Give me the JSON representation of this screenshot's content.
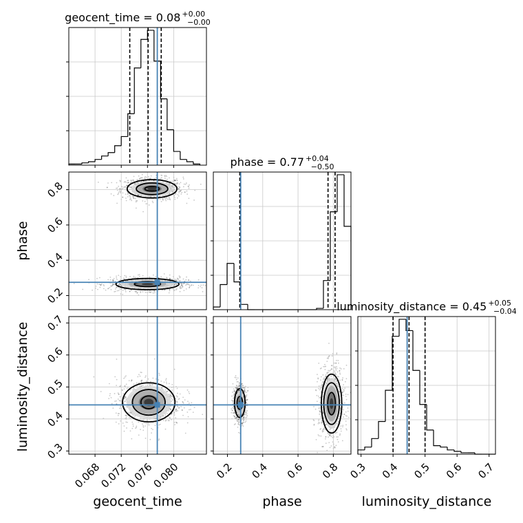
{
  "chart_data": {
    "type": "corner",
    "parameters": [
      "geocent_time",
      "phase",
      "luminosity_distance"
    ],
    "axis_labels": {
      "geocent_time": "geocent_time",
      "phase": "phase",
      "luminosity_distance": "luminosity_distance"
    },
    "titles": {
      "geocent_time": {
        "name": "geocent_time",
        "value": "0.08",
        "plus": "+0.00",
        "minus": "−0.00"
      },
      "phase": {
        "name": "phase",
        "value": "0.77",
        "plus": "+0.04",
        "minus": "−0.50"
      },
      "luminosity_distance": {
        "name": "luminosity_distance",
        "value": "0.45",
        "plus": "+0.05",
        "minus": "−0.04"
      }
    },
    "ranges": {
      "geocent_time": [
        0.064,
        0.085
      ],
      "phase": [
        0.12,
        0.9
      ],
      "luminosity_distance": [
        0.29,
        0.72
      ]
    },
    "ticks": {
      "geocent_time": [
        0.068,
        0.072,
        0.076,
        0.08
      ],
      "phase": [
        0.2,
        0.4,
        0.6,
        0.8
      ],
      "luminosity_distance": [
        0.3,
        0.4,
        0.5,
        0.6,
        0.7
      ]
    },
    "tick_labels": {
      "geocent_time": [
        "0.068",
        "0.072",
        "0.076",
        "0.080"
      ],
      "phase": [
        "0.2",
        "0.4",
        "0.6",
        "0.8"
      ],
      "luminosity_distance": [
        "0.3",
        "0.4",
        "0.5",
        "0.6",
        "0.7"
      ]
    },
    "truths": {
      "geocent_time": 0.0775,
      "phase": 0.275,
      "luminosity_distance": 0.444
    },
    "quantiles": {
      "geocent_time": [
        0.0733,
        0.0761,
        0.0781
      ],
      "phase": [
        0.27,
        0.77,
        0.81
      ],
      "luminosity_distance": [
        0.4,
        0.45,
        0.5
      ]
    },
    "histograms": {
      "geocent_time": {
        "bin_start": 0.064,
        "bin_width": 0.001,
        "counts": [
          1,
          1,
          2,
          3,
          5,
          8,
          11,
          17,
          25,
          45,
          85,
          110,
          118,
          91,
          58,
          31,
          12,
          5,
          3,
          1
        ]
      },
      "phase": {
        "bin_start": 0.12,
        "bin_width": 0.039,
        "counts": [
          2,
          19,
          35,
          21,
          4,
          0,
          0,
          0,
          0,
          0,
          0,
          0,
          0,
          0,
          0,
          1,
          22,
          74,
          102,
          63
        ]
      },
      "luminosity_distance": {
        "bin_start": 0.29,
        "bin_width": 0.0215,
        "counts": [
          3,
          5,
          11,
          23,
          45,
          83,
          95,
          87,
          59,
          35,
          17,
          6,
          5,
          3,
          2,
          1,
          1,
          0,
          0,
          0
        ]
      }
    },
    "contours_2d": [
      {
        "x": "geocent_time",
        "y": "phase",
        "modes": [
          {
            "cx": 0.0767,
            "cy": 0.805,
            "levels": [
              [
                0.0011,
                0.013
              ],
              [
                0.0024,
                0.033
              ],
              [
                0.0038,
                0.052
              ]
            ]
          },
          {
            "cx": 0.076,
            "cy": 0.265,
            "levels": [
              [
                0.002,
                0.014
              ],
              [
                0.0048,
                0.032
              ]
            ]
          }
        ]
      },
      {
        "x": "geocent_time",
        "y": "luminosity_distance",
        "modes": [
          {
            "cx": 0.0762,
            "cy": 0.452,
            "levels": [
              [
                0.0012,
                0.02
              ],
              [
                0.0025,
                0.04
              ],
              [
                0.004,
                0.061
              ]
            ]
          }
        ]
      },
      {
        "x": "phase",
        "y": "luminosity_distance",
        "modes": [
          {
            "cx": 0.79,
            "cy": 0.448,
            "levels": [
              [
                0.022,
                0.035
              ],
              [
                0.044,
                0.065
              ],
              [
                0.058,
                0.092
              ]
            ]
          },
          {
            "cx": 0.27,
            "cy": 0.45,
            "levels": [
              [
                0.016,
                0.02
              ],
              [
                0.03,
                0.045
              ]
            ]
          }
        ]
      }
    ],
    "grid": true,
    "truth_color": "#4682b4"
  }
}
